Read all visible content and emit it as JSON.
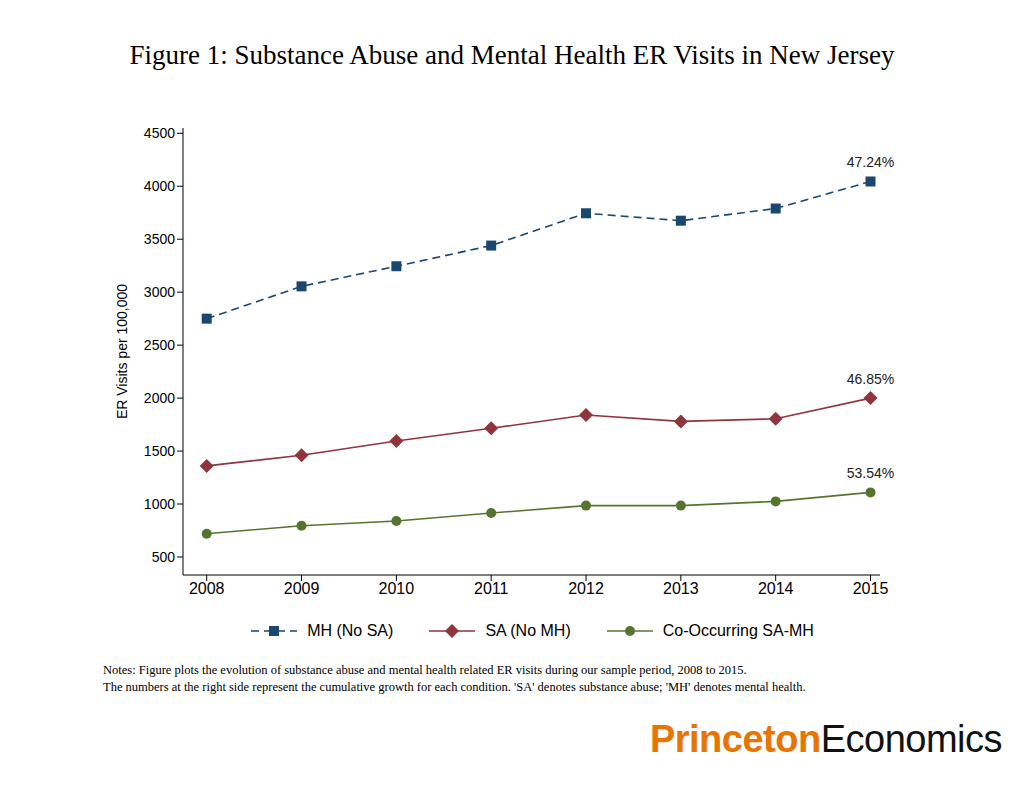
{
  "chart_data": {
    "type": "line",
    "title": "Figure 1: Substance Abuse and Mental Health ER Visits in New Jersey",
    "y_label": "ER Visits per 100,000",
    "x": [
      2008,
      2009,
      2010,
      2011,
      2012,
      2013,
      2014,
      2015
    ],
    "xlim": [
      2007.75,
      2015.1
    ],
    "xticks": [
      2008,
      2009,
      2010,
      2011,
      2012,
      2013,
      2014,
      2015
    ],
    "ylim": [
      330,
      4550
    ],
    "yticks": [
      500,
      1000,
      1500,
      2000,
      2500,
      3000,
      3500,
      4000,
      4500
    ],
    "grid": false,
    "legend": "bottom",
    "series": [
      {
        "name": "MH (No SA)",
        "color": "#1a476f",
        "marker": "square",
        "line_style": "dashed",
        "values": [
          2750,
          3055,
          3245,
          3440,
          3745,
          3675,
          3790,
          4045
        ]
      },
      {
        "name": "SA (No MH)",
        "color": "#90353b",
        "marker": "diamond",
        "line_style": "solid",
        "values": [
          1360,
          1460,
          1595,
          1715,
          1840,
          1780,
          1805,
          2000
        ]
      },
      {
        "name": "Co-Occurring SA-MH",
        "color": "#55752f",
        "marker": "circle",
        "line_style": "solid",
        "values": [
          720,
          795,
          840,
          915,
          985,
          985,
          1025,
          1110
        ]
      }
    ],
    "annotations": [
      {
        "series": "MH (No SA)",
        "text": "47.24%"
      },
      {
        "series": "SA (No MH)",
        "text": "46.85%"
      },
      {
        "series": "Co-Occurring SA-MH",
        "text": "53.54%"
      }
    ],
    "notes": [
      "Notes: Figure plots the evolution of substance abuse and mental health related ER visits during our sample period, 2008 to 2015.",
      "The numbers at the right side represent the cumulative growth for each condition. 'SA' denotes substance abuse; 'MH' denotes mental health."
    ],
    "logo": [
      "Princeton",
      "Economics"
    ]
  }
}
